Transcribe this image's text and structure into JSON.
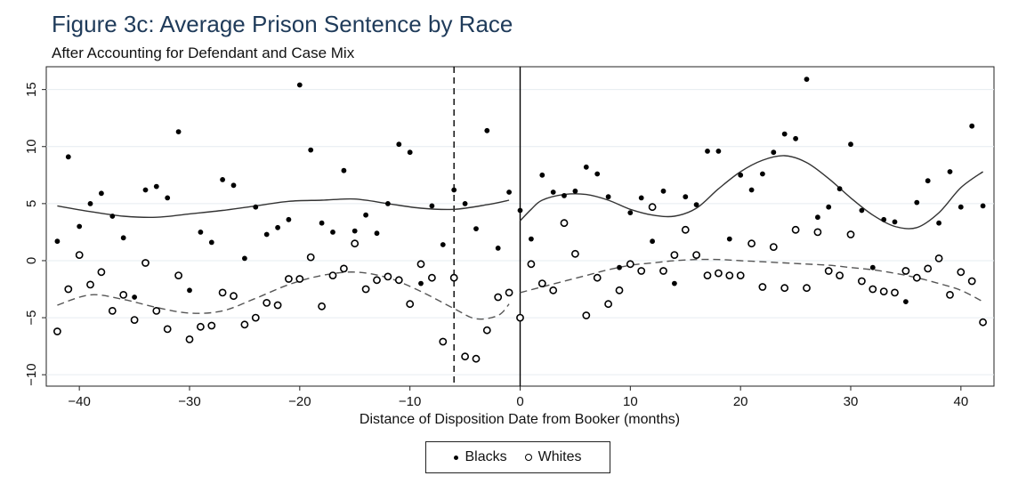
{
  "chart_data": {
    "type": "scatter",
    "title": "Figure 3c: Average Prison Sentence by Race",
    "subtitle": "After Accounting for Defendant and Case Mix",
    "xlabel": "Distance of Disposition Date from Booker (months)",
    "ylabel": "",
    "xlim": [
      -43,
      43
    ],
    "ylim": [
      -11,
      17
    ],
    "xticks": [
      -40,
      -30,
      -20,
      -10,
      0,
      10,
      20,
      30,
      40
    ],
    "xtick_labels": [
      "−40",
      "−30",
      "−20",
      "−10",
      "0",
      "10",
      "20",
      "30",
      "40"
    ],
    "yticks": [
      -10,
      -5,
      0,
      5,
      10,
      15
    ],
    "ytick_labels": [
      "−10",
      "−5",
      "0",
      "5",
      "10",
      "15"
    ],
    "grid": "horizontal",
    "reference_lines": [
      {
        "x": -6,
        "style": "dashed"
      },
      {
        "x": 0,
        "style": "solid"
      }
    ],
    "legend": {
      "position": "bottom-center",
      "entries": [
        "Blacks",
        "Whites"
      ]
    },
    "series": [
      {
        "name": "Blacks",
        "marker": "filled-circle",
        "x": [
          -42,
          -41,
          -40,
          -39,
          -38,
          -37,
          -36,
          -35,
          -34,
          -33,
          -32,
          -31,
          -30,
          -29,
          -28,
          -27,
          -26,
          -25,
          -24,
          -23,
          -22,
          -21,
          -20,
          -19,
          -18,
          -17,
          -16,
          -15,
          -14,
          -13,
          -12,
          -11,
          -10,
          -9,
          -8,
          -7,
          -6,
          -5,
          -4,
          -3,
          -2,
          -1,
          0,
          1,
          2,
          3,
          4,
          5,
          6,
          7,
          8,
          9,
          10,
          11,
          12,
          13,
          14,
          15,
          16,
          17,
          18,
          19,
          20,
          21,
          22,
          23,
          24,
          25,
          26,
          27,
          28,
          29,
          30,
          31,
          32,
          33,
          34,
          35,
          36,
          37,
          38,
          39,
          40,
          41,
          42
        ],
        "values": [
          1.7,
          9.1,
          3.0,
          5.0,
          5.9,
          3.9,
          2.0,
          -3.2,
          6.2,
          6.5,
          5.5,
          11.3,
          -2.6,
          2.5,
          1.6,
          7.1,
          6.6,
          0.2,
          4.7,
          2.3,
          2.9,
          3.6,
          15.4,
          9.7,
          3.3,
          2.5,
          7.9,
          2.6,
          4.0,
          2.4,
          5.0,
          10.2,
          9.5,
          -2.0,
          4.8,
          1.4,
          6.2,
          5.0,
          2.8,
          11.4,
          1.1,
          6.0,
          4.4,
          1.9,
          7.5,
          6.0,
          5.7,
          6.1,
          8.2,
          7.6,
          5.6,
          -0.6,
          4.2,
          5.5,
          1.7,
          6.1,
          -2.0,
          5.6,
          4.9,
          9.6,
          9.6,
          1.9,
          7.5,
          6.2,
          7.6,
          9.5,
          11.1,
          10.7,
          15.9,
          3.8,
          4.7,
          6.3,
          10.2,
          4.4,
          -0.6,
          3.6,
          3.4,
          -3.6,
          5.1,
          7.0,
          3.3,
          7.8,
          4.7,
          11.8,
          4.8
        ]
      },
      {
        "name": "Whites",
        "marker": "hollow-circle",
        "x": [
          -42,
          -41,
          -40,
          -39,
          -38,
          -37,
          -36,
          -35,
          -34,
          -33,
          -32,
          -31,
          -30,
          -29,
          -28,
          -27,
          -26,
          -25,
          -24,
          -23,
          -22,
          -21,
          -20,
          -19,
          -18,
          -17,
          -16,
          -15,
          -14,
          -13,
          -12,
          -11,
          -10,
          -9,
          -8,
          -7,
          -6,
          -5,
          -4,
          -3,
          -2,
          -1,
          0,
          1,
          2,
          3,
          4,
          5,
          6,
          7,
          8,
          9,
          10,
          11,
          12,
          13,
          14,
          15,
          16,
          17,
          18,
          19,
          20,
          21,
          22,
          23,
          24,
          25,
          26,
          27,
          28,
          29,
          30,
          31,
          32,
          33,
          34,
          35,
          36,
          37,
          38,
          39,
          40,
          41,
          42
        ],
        "values": [
          -6.2,
          -2.5,
          0.5,
          -2.1,
          -1.0,
          -4.4,
          -3.0,
          -5.2,
          -0.2,
          -4.4,
          -6.0,
          -1.3,
          -6.9,
          -5.8,
          -5.7,
          -2.8,
          -3.1,
          -5.6,
          -5.0,
          -3.7,
          -3.9,
          -1.6,
          -1.6,
          0.3,
          -4.0,
          -1.3,
          -0.7,
          1.5,
          -2.5,
          -1.7,
          -1.4,
          -1.7,
          -3.8,
          -0.3,
          -1.5,
          -7.1,
          -1.5,
          -8.4,
          -8.6,
          -6.1,
          -3.2,
          -2.8,
          -5.0,
          -0.3,
          -2.0,
          -2.6,
          3.3,
          0.6,
          -4.8,
          -1.5,
          -3.8,
          -2.6,
          -0.3,
          -0.9,
          4.7,
          -0.9,
          0.5,
          2.7,
          0.5,
          -1.3,
          -1.1,
          -1.3,
          -1.3,
          1.5,
          -2.3,
          1.2,
          -2.4,
          2.7,
          -2.4,
          2.5,
          -0.9,
          -1.3,
          2.3,
          -1.8,
          -2.5,
          -2.7,
          -2.8,
          -0.9,
          -1.5,
          -0.7,
          0.2,
          -3.0,
          -1.0,
          -1.8,
          -5.4
        ]
      }
    ],
    "fitted_lines": [
      {
        "series": "Blacks",
        "style": "solid",
        "segments": [
          {
            "x": [
              -42,
              -39,
              -36,
              -33,
              -30,
              -27,
              -24,
              -21,
              -18,
              -15,
              -12,
              -9,
              -6,
              -3,
              -1
            ],
            "values": [
              4.8,
              4.3,
              3.9,
              3.8,
              4.1,
              4.4,
              4.8,
              5.2,
              5.3,
              5.4,
              5.0,
              4.6,
              4.5,
              4.9,
              5.3
            ]
          },
          {
            "x": [
              0,
              1,
              2,
              4,
              6,
              8,
              10,
              12,
              14,
              16,
              18,
              20,
              22,
              24,
              26,
              28,
              30,
              32,
              34,
              36,
              38,
              40,
              42
            ],
            "values": [
              3.5,
              4.5,
              5.3,
              5.8,
              5.8,
              5.3,
              4.5,
              4.0,
              3.9,
              4.6,
              6.3,
              7.8,
              8.8,
              9.2,
              8.6,
              7.2,
              5.5,
              4.0,
              3.0,
              2.9,
              4.2,
              6.4,
              7.8
            ]
          }
        ]
      },
      {
        "series": "Whites",
        "style": "dashed",
        "segments": [
          {
            "x": [
              -42,
              -39,
              -36,
              -33,
              -30,
              -27,
              -24,
              -21,
              -18,
              -15,
              -12,
              -9,
              -6,
              -4,
              -2,
              -1
            ],
            "values": [
              -3.9,
              -3.0,
              -3.4,
              -4.1,
              -4.6,
              -4.4,
              -3.3,
              -2.1,
              -1.3,
              -1.0,
              -1.5,
              -2.7,
              -4.2,
              -5.1,
              -4.8,
              -3.8
            ]
          },
          {
            "x": [
              0,
              2,
              4,
              6,
              8,
              10,
              12,
              14,
              16,
              18,
              20,
              22,
              24,
              26,
              28,
              30,
              32,
              34,
              36,
              38,
              40,
              42
            ],
            "values": [
              -2.8,
              -2.3,
              -1.8,
              -1.3,
              -0.8,
              -0.4,
              -0.2,
              0.0,
              0.1,
              0.1,
              0.0,
              -0.1,
              -0.2,
              -0.3,
              -0.4,
              -0.6,
              -0.8,
              -1.1,
              -1.5,
              -2.0,
              -2.6,
              -3.6
            ]
          }
        ]
      }
    ]
  }
}
